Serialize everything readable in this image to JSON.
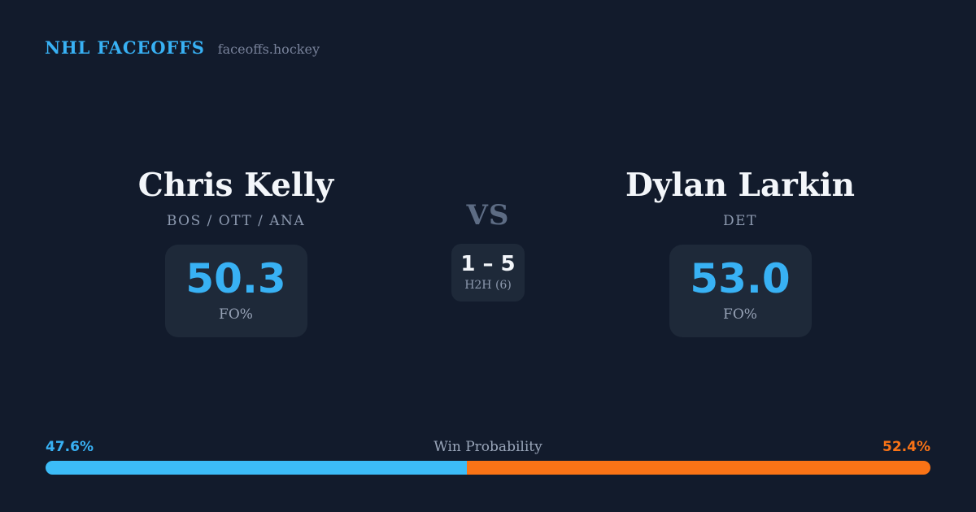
{
  "header": {
    "brand": "NHL FACEOFFS",
    "site": "faceoffs.hockey"
  },
  "players": [
    {
      "name": "Chris Kelly",
      "teams": "BOS / OTT / ANA",
      "fo_value": "50.3",
      "fo_label": "FO%"
    },
    {
      "name": "Dylan Larkin",
      "teams": "DET",
      "fo_value": "53.0",
      "fo_label": "FO%"
    }
  ],
  "versus": {
    "label": "VS",
    "h2h_score": "1 – 5",
    "h2h_label": "H2H (6)"
  },
  "win_probability": {
    "title": "Win Probability",
    "left_label": "47.6%",
    "right_label": "52.4%",
    "left_value": 47.6,
    "right_value": 52.4
  },
  "colors": {
    "background": "#121b2c",
    "card": "#1e2939",
    "accent_blue": "#38b1f4",
    "bar_blue": "#3cbcf8",
    "accent_orange": "#f97316",
    "text_primary": "#f3f6fa",
    "text_muted": "#8d9ab0"
  }
}
